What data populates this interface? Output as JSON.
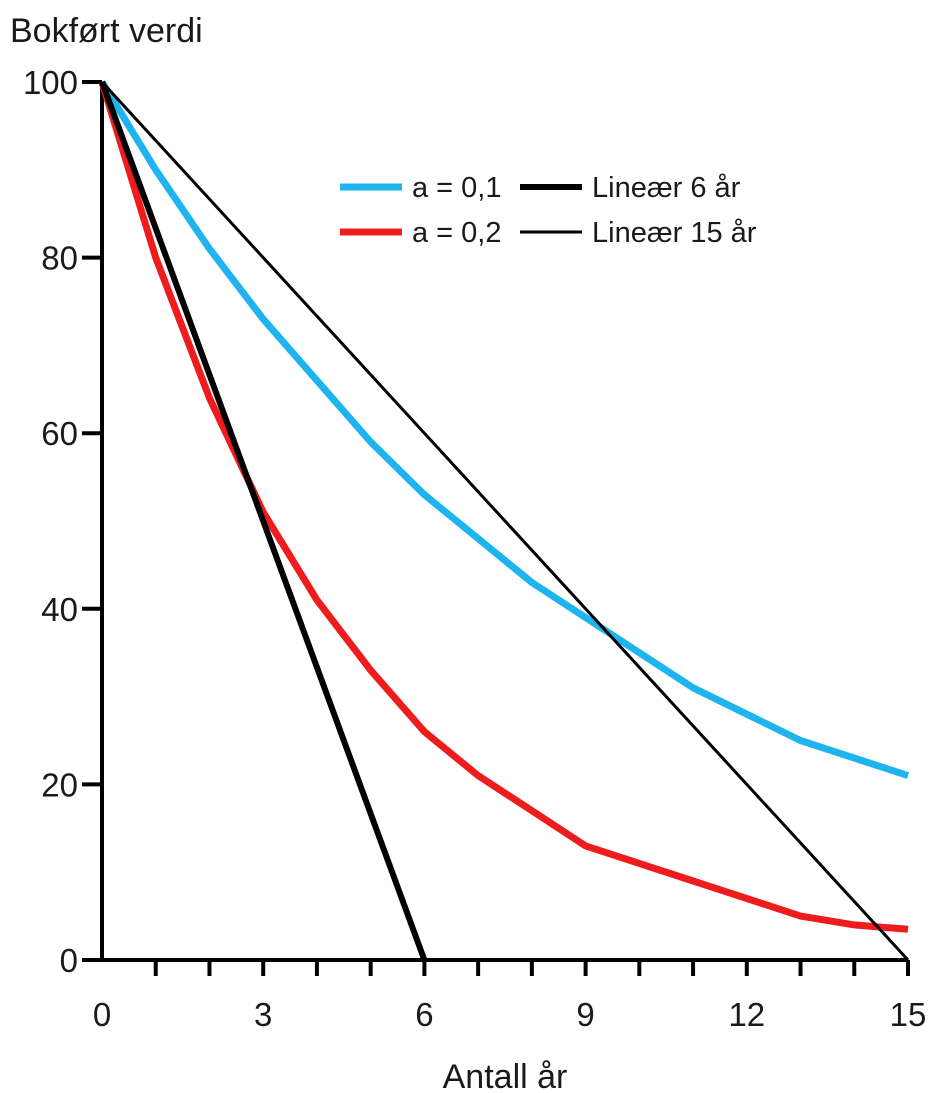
{
  "chart_data": {
    "type": "line",
    "xlabel": "Antall år",
    "ylabel": "Bokført verdi",
    "xlim": [
      0,
      15
    ],
    "ylim": [
      0,
      100
    ],
    "x_ticks": [
      "0",
      "3",
      "6",
      "9",
      "12",
      "15"
    ],
    "y_ticks": [
      "0",
      "20",
      "40",
      "60",
      "80",
      "100"
    ],
    "grid": false,
    "legend_position": "top-right",
    "series": [
      {
        "name": "a = 0,1",
        "color": "#1eb4ef",
        "x": [
          0,
          1,
          2,
          3,
          4,
          5,
          6,
          7,
          8,
          9,
          10,
          11,
          12,
          13,
          14,
          15
        ],
        "values": [
          100,
          90,
          81,
          73,
          66,
          59,
          53,
          48,
          43,
          39,
          35,
          31,
          28,
          25,
          23,
          21
        ]
      },
      {
        "name": "a = 0,2",
        "color": "#ee1c1c",
        "x": [
          0,
          1,
          2,
          3,
          4,
          5,
          6,
          7,
          8,
          9,
          10,
          11,
          12,
          13,
          14,
          15
        ],
        "values": [
          100,
          80,
          64,
          51,
          41,
          33,
          26,
          21,
          17,
          13,
          11,
          9,
          7,
          5,
          4,
          3.5
        ]
      },
      {
        "name": "Lineær 6 år",
        "color": "#000000",
        "x": [
          0,
          6
        ],
        "values": [
          100,
          0
        ]
      },
      {
        "name": "Lineær 15 år",
        "color": "#000000",
        "x": [
          0,
          15
        ],
        "values": [
          100,
          0
        ]
      }
    ]
  }
}
